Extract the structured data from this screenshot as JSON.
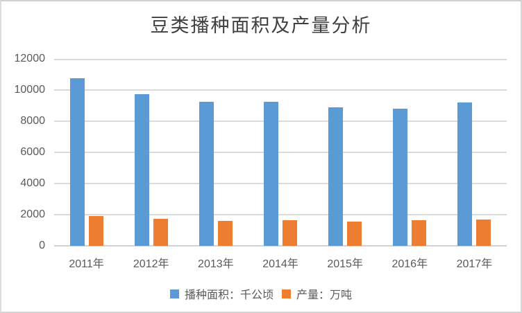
{
  "window": {
    "background": "#ffffff",
    "border_color": "#d6d6d6"
  },
  "chart_data": {
    "type": "bar",
    "title": "豆类播种面积及产量分析",
    "title_color": "#3f3f3f",
    "categories": [
      "2011年",
      "2012年",
      "2013年",
      "2014年",
      "2015年",
      "2016年",
      "2017年"
    ],
    "series": [
      {
        "name": "播种面积：千公顷",
        "color": "#5B9BD5",
        "values": [
          10750,
          9750,
          9250,
          9250,
          8900,
          8800,
          9200
        ]
      },
      {
        "name": "产量：万吨",
        "color": "#ED7D31",
        "values": [
          1910,
          1730,
          1600,
          1630,
          1550,
          1640,
          1700
        ]
      }
    ],
    "xlabel": "",
    "ylabel": "",
    "ylim": [
      0,
      12000
    ],
    "y_ticks": [
      0,
      2000,
      4000,
      6000,
      8000,
      10000,
      12000
    ],
    "grid": "horizontal",
    "gridline_color": "#dadada",
    "axis_label_color": "#595959",
    "legend_position": "bottom"
  }
}
